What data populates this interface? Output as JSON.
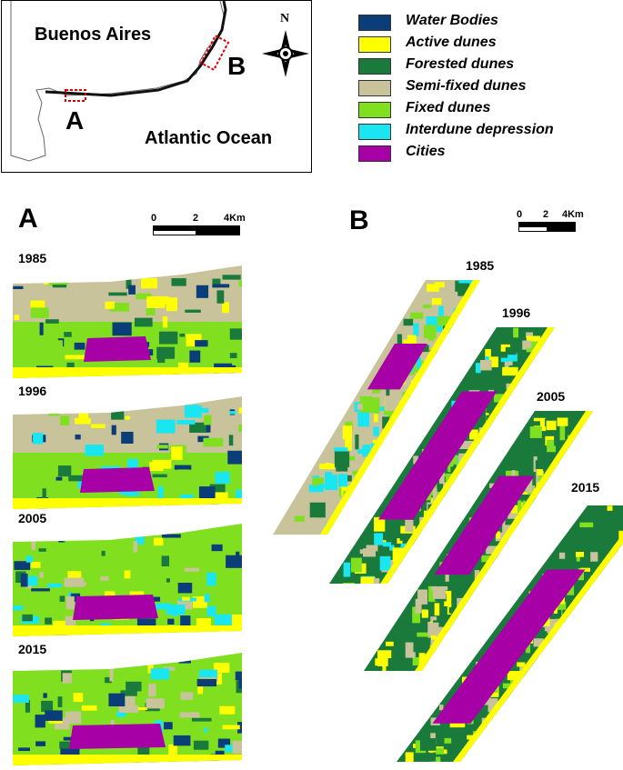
{
  "inset": {
    "label_city": "Buenos Aires",
    "label_ocean": "Atlantic Ocean",
    "label_a": "A",
    "label_b": "B",
    "north": "N"
  },
  "legend": [
    {
      "label": "Water Bodies",
      "color": "#0b3d78"
    },
    {
      "label": "Active dunes",
      "color": "#ffff00"
    },
    {
      "label": "Forested dunes",
      "color": "#1a7a3c"
    },
    {
      "label": "Semi-fixed dunes",
      "color": "#c8c39a"
    },
    {
      "label": "Fixed dunes",
      "color": "#80e020"
    },
    {
      "label": "Interdune depression",
      "color": "#19e6f0"
    },
    {
      "label": "Cities",
      "color": "#a600a6"
    }
  ],
  "panel_a": {
    "letter": "A",
    "scale": {
      "zero": "0",
      "mid": "2",
      "end": "4Km"
    },
    "years": [
      "1985",
      "1996",
      "2005",
      "2015"
    ]
  },
  "panel_b": {
    "letter": "B",
    "scale": {
      "zero": "0",
      "mid": "2",
      "end": "4Km"
    },
    "years": [
      "1985",
      "1996",
      "2005",
      "2015"
    ]
  }
}
